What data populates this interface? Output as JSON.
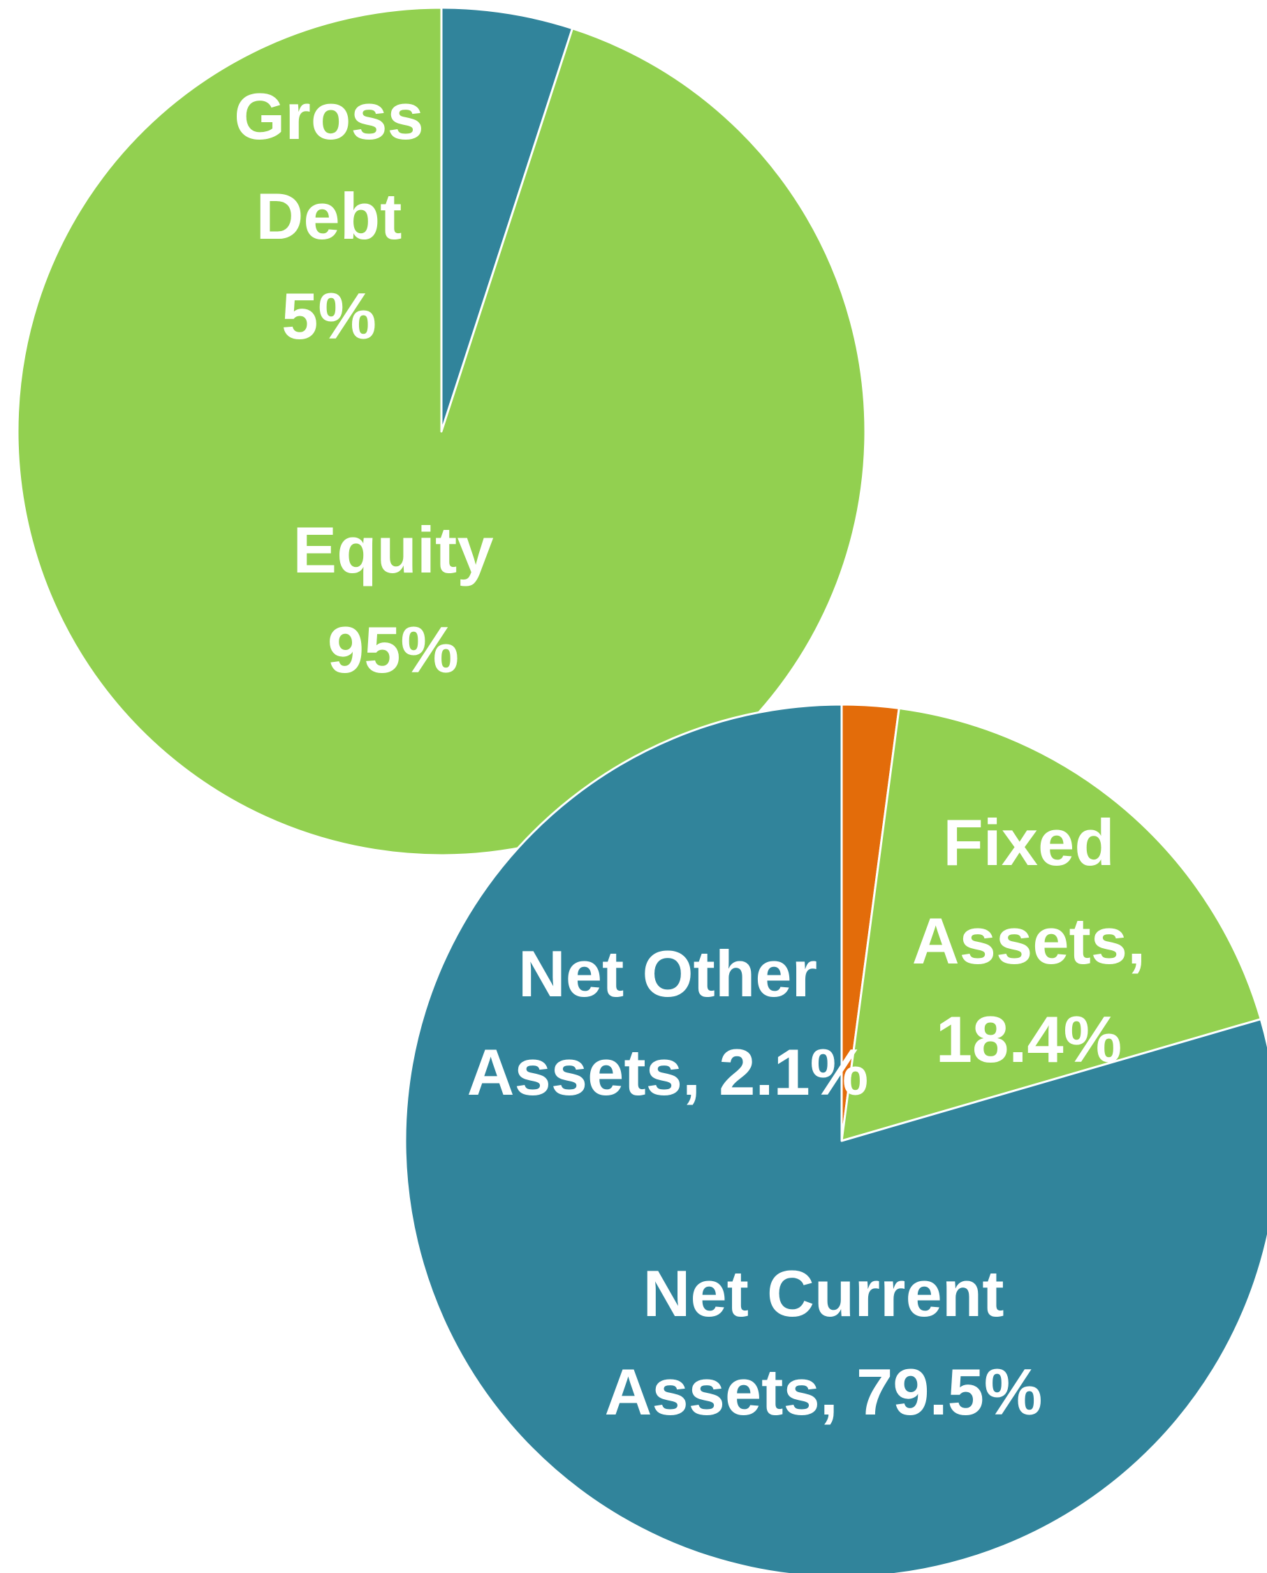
{
  "chart_data": [
    {
      "type": "pie",
      "labels": [
        [
          "Gross",
          "Debt",
          "5%"
        ],
        [
          "Equity",
          "95%"
        ]
      ],
      "values": [
        5,
        95
      ],
      "colors": [
        "#31849b",
        "#92d050"
      ]
    },
    {
      "type": "pie",
      "labels": [
        [
          "Net Other",
          "Assets, 2.1%"
        ],
        [
          "Fixed",
          "Assets,",
          "18.4%"
        ],
        [
          "Net Current",
          "Assets, 79.5%"
        ]
      ],
      "values": [
        2.1,
        18.4,
        79.5
      ],
      "colors": [
        "#e36c0a",
        "#92d050",
        "#31849b"
      ]
    }
  ]
}
